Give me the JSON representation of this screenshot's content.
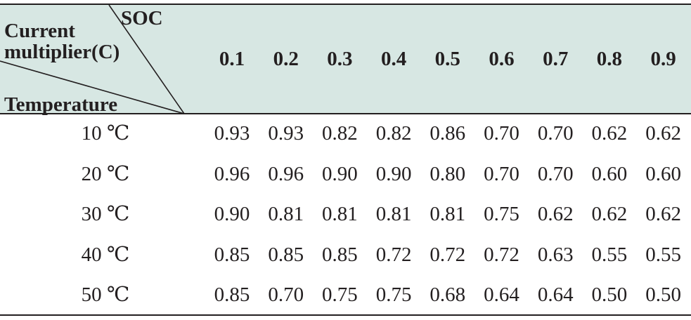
{
  "table": {
    "corner": {
      "column_axis_label": "SOC",
      "current_label_line1": "Current",
      "current_label_line2": "multiplier(C)",
      "row_axis_label": "Temperature"
    },
    "columns": [
      "0.1",
      "0.2",
      "0.3",
      "0.4",
      "0.5",
      "0.6",
      "0.7",
      "0.8",
      "0.9"
    ],
    "rows": [
      {
        "label": "10 ℃",
        "values": [
          "0.93",
          "0.93",
          "0.82",
          "0.82",
          "0.86",
          "0.70",
          "0.70",
          "0.62",
          "0.62"
        ]
      },
      {
        "label": "20 ℃",
        "values": [
          "0.96",
          "0.96",
          "0.90",
          "0.90",
          "0.80",
          "0.70",
          "0.70",
          "0.60",
          "0.60"
        ]
      },
      {
        "label": "30 ℃",
        "values": [
          "0.90",
          "0.81",
          "0.81",
          "0.81",
          "0.81",
          "0.75",
          "0.62",
          "0.62",
          "0.62"
        ]
      },
      {
        "label": "40 ℃",
        "values": [
          "0.85",
          "0.85",
          "0.85",
          "0.72",
          "0.72",
          "0.72",
          "0.63",
          "0.55",
          "0.55"
        ]
      },
      {
        "label": "50 ℃",
        "values": [
          "0.85",
          "0.70",
          "0.75",
          "0.75",
          "0.68",
          "0.64",
          "0.64",
          "0.50",
          "0.50"
        ]
      }
    ],
    "colors": {
      "header_background": "#d7e7e3",
      "text": "#231f20",
      "rules": "#231f20"
    }
  }
}
